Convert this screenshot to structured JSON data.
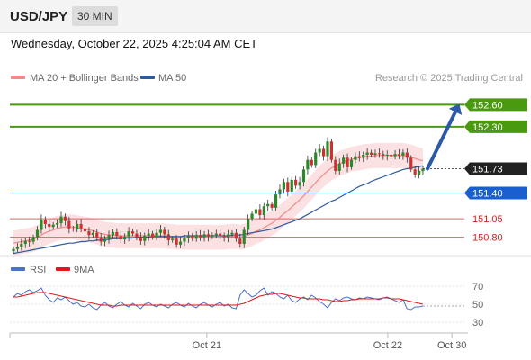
{
  "header": {
    "symbol": "USD/JPY",
    "timeframe": "30 MIN",
    "datetime": "Wednesday, October 22, 2025 4:25:04 AM CET"
  },
  "legend": {
    "items": [
      {
        "label": "MA 20 + Bollinger Bands",
        "color": "#f08a8a"
      },
      {
        "label": "MA 50",
        "color": "#2f5b9a"
      }
    ],
    "credit": "Research © 2025 Trading Central"
  },
  "rsi_legend": {
    "items": [
      {
        "label": "RSI",
        "color": "#4a72c8"
      },
      {
        "label": "9MA",
        "color": "#e01818"
      }
    ]
  },
  "x_axis": {
    "labels": [
      {
        "text": "Oct 21",
        "pos": 0.43
      },
      {
        "text": "Oct 22",
        "pos": 0.825
      },
      {
        "text": "Oct 30",
        "pos": 0.965
      }
    ]
  },
  "colors": {
    "resistance": "#4a9a10",
    "support": "#e06060",
    "current": "#222222",
    "pivot": "#1a5fd0",
    "arrow": "#2a5aa8",
    "bull": "#2a8a2a",
    "bear": "#d03030",
    "band": "#fadada"
  },
  "chart_data": [
    {
      "type": "candlestick",
      "title": "USD/JPY 30 MIN",
      "ylim": [
        150.6,
        152.8
      ],
      "levels": [
        {
          "value": 152.6,
          "label": "152.60",
          "kind": "resistance"
        },
        {
          "value": 152.3,
          "label": "152.30",
          "kind": "resistance"
        },
        {
          "value": 151.73,
          "label": "151.73",
          "kind": "current"
        },
        {
          "value": 151.4,
          "label": "151.40",
          "kind": "pivot"
        },
        {
          "value": 151.05,
          "label": "151.05",
          "kind": "support"
        },
        {
          "value": 150.8,
          "label": "150.80",
          "kind": "support"
        }
      ],
      "close_series": [
        150.64,
        150.67,
        150.71,
        150.75,
        150.74,
        150.8,
        150.9,
        151.04,
        150.98,
        150.94,
        150.97,
        150.99,
        151.08,
        151.02,
        150.92,
        150.91,
        150.98,
        150.92,
        150.88,
        150.83,
        150.86,
        150.79,
        150.74,
        150.78,
        150.83,
        150.87,
        150.82,
        150.77,
        150.81,
        150.88,
        150.85,
        150.8,
        150.75,
        150.82,
        150.85,
        150.8,
        150.86,
        150.9,
        150.84,
        150.76,
        150.78,
        150.7,
        150.74,
        150.79,
        150.82,
        150.78,
        150.83,
        150.8,
        150.84,
        150.81,
        150.83,
        150.85,
        150.82,
        150.8,
        150.84,
        150.86,
        150.78,
        150.71,
        150.9,
        151.05,
        151.12,
        151.18,
        151.1,
        151.22,
        151.25,
        151.2,
        151.38,
        151.45,
        151.55,
        151.42,
        151.58,
        151.5,
        151.55,
        151.72,
        151.85,
        151.78,
        151.95,
        152.0,
        151.9,
        152.1,
        151.85,
        151.7,
        151.8,
        151.88,
        151.75,
        151.85,
        151.9,
        151.88,
        151.92,
        151.95,
        151.92,
        151.94,
        151.93,
        151.91,
        151.92,
        151.9,
        151.93,
        151.91,
        151.95,
        151.88,
        151.72,
        151.65,
        151.7,
        151.73
      ],
      "ma20_series": [
        150.72,
        150.73,
        150.74,
        150.75,
        150.76,
        150.77,
        150.8,
        150.83,
        150.86,
        150.88,
        150.9,
        150.92,
        150.93,
        150.94,
        150.94,
        150.94,
        150.93,
        150.92,
        150.91,
        150.9,
        150.89,
        150.87,
        150.85,
        150.84,
        150.83,
        150.83,
        150.82,
        150.82,
        150.82,
        150.82,
        150.82,
        150.82,
        150.82,
        150.82,
        150.82,
        150.82,
        150.82,
        150.82,
        150.82,
        150.81,
        150.81,
        150.8,
        150.8,
        150.8,
        150.8,
        150.8,
        150.8,
        150.8,
        150.8,
        150.8,
        150.8,
        150.8,
        150.8,
        150.8,
        150.81,
        150.81,
        150.81,
        150.8,
        150.81,
        150.83,
        150.85,
        150.88,
        150.9,
        150.93,
        150.96,
        150.99,
        151.03,
        151.07,
        151.12,
        151.16,
        151.21,
        151.26,
        151.31,
        151.36,
        151.42,
        151.48,
        151.54,
        151.6,
        151.65,
        151.7,
        151.74,
        151.77,
        151.8,
        151.82,
        151.84,
        151.86,
        151.87,
        151.88,
        151.89,
        151.9,
        151.9,
        151.91,
        151.91,
        151.91,
        151.91,
        151.91,
        151.91,
        151.91,
        151.91,
        151.9,
        151.89,
        151.87,
        151.85,
        151.84
      ],
      "ma50_series": [
        150.58,
        150.59,
        150.6,
        150.61,
        150.62,
        150.63,
        150.64,
        150.65,
        150.66,
        150.67,
        150.68,
        150.69,
        150.7,
        150.71,
        150.72,
        150.72,
        150.73,
        150.74,
        150.74,
        150.75,
        150.75,
        150.76,
        150.76,
        150.77,
        150.77,
        150.78,
        150.78,
        150.78,
        150.79,
        150.79,
        150.79,
        150.8,
        150.8,
        150.8,
        150.8,
        150.81,
        150.81,
        150.81,
        150.81,
        150.81,
        150.81,
        150.81,
        150.81,
        150.82,
        150.82,
        150.82,
        150.82,
        150.82,
        150.82,
        150.82,
        150.82,
        150.82,
        150.82,
        150.82,
        150.82,
        150.83,
        150.83,
        150.83,
        150.84,
        150.85,
        150.86,
        150.87,
        150.88,
        150.89,
        150.9,
        150.91,
        150.93,
        150.95,
        150.97,
        150.99,
        151.01,
        151.03,
        151.05,
        151.08,
        151.11,
        151.14,
        151.17,
        151.2,
        151.23,
        151.26,
        151.29,
        151.31,
        151.34,
        151.37,
        151.4,
        151.43,
        151.46,
        151.49,
        151.51,
        151.53,
        151.56,
        151.58,
        151.6,
        151.62,
        151.64,
        151.66,
        151.68,
        151.7,
        151.72,
        151.73,
        151.74,
        151.75,
        151.76,
        151.77
      ],
      "band_width": 0.17,
      "projection": {
        "from": 151.73,
        "to": 152.6
      }
    },
    {
      "type": "line",
      "title": "RSI",
      "ylim": [
        20,
        80
      ],
      "y_ticks": [
        70,
        50,
        30
      ],
      "series": [
        {
          "name": "RSI",
          "values": [
            58,
            62,
            60,
            64,
            66,
            63,
            65,
            68,
            60,
            55,
            52,
            57,
            55,
            58,
            54,
            50,
            52,
            48,
            47,
            50,
            46,
            44,
            49,
            52,
            48,
            46,
            50,
            53,
            49,
            47,
            51,
            48,
            45,
            50,
            52,
            49,
            47,
            50,
            48,
            46,
            50,
            52,
            49,
            47,
            51,
            48,
            46,
            50,
            52,
            49,
            47,
            50,
            52,
            48,
            50,
            46,
            45,
            60,
            66,
            62,
            58,
            60,
            65,
            68,
            60,
            64,
            62,
            58,
            56,
            60,
            54,
            52,
            56,
            58,
            55,
            60,
            57,
            53,
            50,
            46,
            52,
            56,
            54,
            57,
            58,
            56,
            55,
            57,
            56,
            58,
            57,
            56,
            55,
            57,
            58,
            56,
            54,
            52,
            55,
            45,
            44,
            47,
            47,
            48
          ]
        },
        {
          "name": "9MA",
          "values": [
            58,
            58,
            59,
            60,
            61,
            62,
            63,
            63,
            63,
            62,
            61,
            60,
            59,
            58,
            57,
            56,
            55,
            54,
            53,
            52,
            51,
            50,
            49,
            49,
            49,
            48,
            48,
            49,
            49,
            49,
            49,
            49,
            49,
            49,
            49,
            49,
            49,
            49,
            49,
            49,
            49,
            49,
            49,
            49,
            49,
            49,
            49,
            49,
            49,
            49,
            49,
            49,
            49,
            49,
            49,
            49,
            49,
            50,
            51,
            53,
            55,
            57,
            59,
            60,
            61,
            61,
            62,
            62,
            61,
            60,
            59,
            58,
            57,
            57,
            56,
            56,
            56,
            56,
            55,
            55,
            54,
            53,
            53,
            54,
            54,
            55,
            55,
            56,
            56,
            56,
            56,
            56,
            56,
            57,
            57,
            56,
            56,
            56,
            55,
            54,
            53,
            52,
            51,
            50
          ]
        }
      ]
    }
  ]
}
